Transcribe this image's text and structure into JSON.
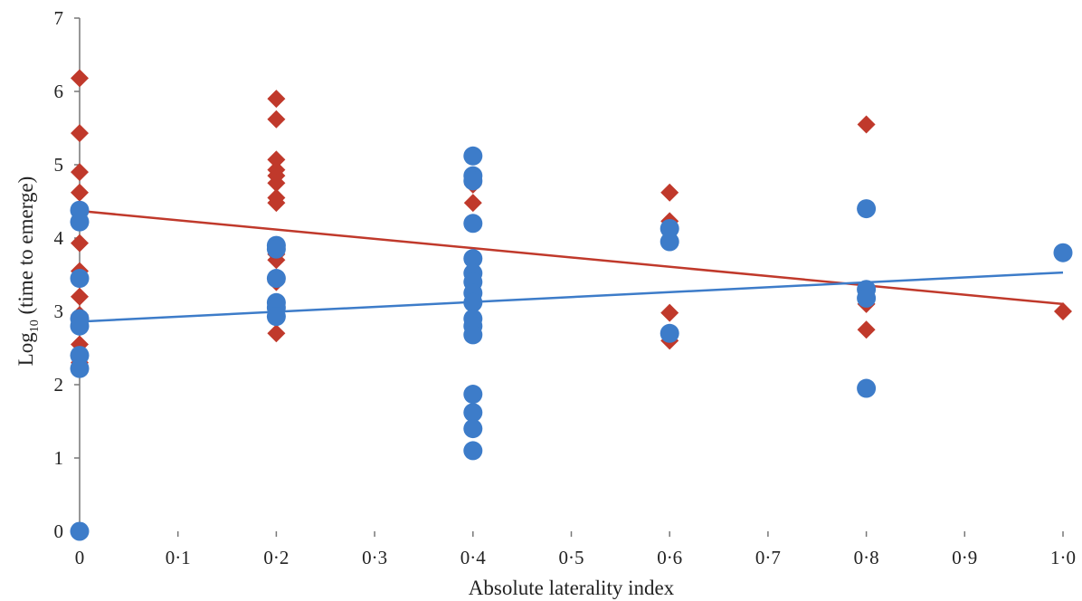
{
  "chart_data": {
    "type": "scatter",
    "title": "",
    "xlabel": "Absolute laterality index",
    "ylabel_main": "Log",
    "ylabel_sub": "10",
    "ylabel_rest": " (time to emerge)",
    "xlim": [
      0,
      1.0
    ],
    "ylim": [
      0,
      7
    ],
    "x_ticks": [
      {
        "value": 0,
        "label": "0"
      },
      {
        "value": 0.1,
        "label": "0·1"
      },
      {
        "value": 0.2,
        "label": "0·2"
      },
      {
        "value": 0.3,
        "label": "0·3"
      },
      {
        "value": 0.4,
        "label": "0·4"
      },
      {
        "value": 0.5,
        "label": "0·5"
      },
      {
        "value": 0.6,
        "label": "0·6"
      },
      {
        "value": 0.7,
        "label": "0·7"
      },
      {
        "value": 0.8,
        "label": "0·8"
      },
      {
        "value": 0.9,
        "label": "0·9"
      },
      {
        "value": 1.0,
        "label": "1·0"
      }
    ],
    "y_ticks": [
      {
        "value": 0,
        "label": "0"
      },
      {
        "value": 1,
        "label": "1"
      },
      {
        "value": 2,
        "label": "2"
      },
      {
        "value": 3,
        "label": "3"
      },
      {
        "value": 4,
        "label": "4"
      },
      {
        "value": 5,
        "label": "5"
      },
      {
        "value": 6,
        "label": "6"
      },
      {
        "value": 7,
        "label": "7"
      }
    ],
    "grid": false,
    "legend": "none",
    "series": [
      {
        "marker": "diamond",
        "color": "#c0392b",
        "points": [
          [
            0,
            6.18
          ],
          [
            0,
            5.43
          ],
          [
            0,
            4.9
          ],
          [
            0,
            4.62
          ],
          [
            0,
            4.25
          ],
          [
            0,
            3.93
          ],
          [
            0,
            3.55
          ],
          [
            0,
            3.2
          ],
          [
            0,
            2.95
          ],
          [
            0,
            2.55
          ],
          [
            0,
            2.3
          ],
          [
            0.2,
            5.9
          ],
          [
            0.2,
            5.62
          ],
          [
            0.2,
            5.07
          ],
          [
            0.2,
            4.93
          ],
          [
            0.2,
            4.85
          ],
          [
            0.2,
            4.75
          ],
          [
            0.2,
            4.55
          ],
          [
            0.2,
            4.48
          ],
          [
            0.2,
            3.78
          ],
          [
            0.2,
            3.7
          ],
          [
            0.2,
            3.4
          ],
          [
            0.2,
            2.7
          ],
          [
            0.4,
            4.73
          ],
          [
            0.4,
            4.48
          ],
          [
            0.4,
            3.4
          ],
          [
            0.6,
            4.62
          ],
          [
            0.6,
            4.23
          ],
          [
            0.6,
            2.98
          ],
          [
            0.6,
            2.6
          ],
          [
            0.8,
            5.55
          ],
          [
            0.8,
            3.1
          ],
          [
            0.8,
            2.75
          ],
          [
            1.0,
            3.0
          ]
        ],
        "trend": {
          "x0": 0,
          "y0": 4.37,
          "x1": 1.0,
          "y1": 3.1
        }
      },
      {
        "marker": "circle",
        "color": "#3d7cc9",
        "points": [
          [
            0,
            4.38
          ],
          [
            0,
            4.22
          ],
          [
            0,
            3.45
          ],
          [
            0,
            2.9
          ],
          [
            0,
            2.8
          ],
          [
            0,
            2.4
          ],
          [
            0,
            2.22
          ],
          [
            0,
            0.0
          ],
          [
            0.2,
            3.9
          ],
          [
            0.2,
            3.85
          ],
          [
            0.2,
            3.45
          ],
          [
            0.2,
            3.12
          ],
          [
            0.2,
            3.05
          ],
          [
            0.2,
            2.93
          ],
          [
            0.4,
            5.12
          ],
          [
            0.4,
            4.85
          ],
          [
            0.4,
            4.78
          ],
          [
            0.4,
            4.2
          ],
          [
            0.4,
            3.72
          ],
          [
            0.4,
            3.52
          ],
          [
            0.4,
            3.4
          ],
          [
            0.4,
            3.25
          ],
          [
            0.4,
            3.12
          ],
          [
            0.4,
            2.9
          ],
          [
            0.4,
            2.8
          ],
          [
            0.4,
            2.68
          ],
          [
            0.4,
            1.87
          ],
          [
            0.4,
            1.62
          ],
          [
            0.4,
            1.4
          ],
          [
            0.4,
            1.1
          ],
          [
            0.6,
            4.13
          ],
          [
            0.6,
            3.95
          ],
          [
            0.6,
            2.7
          ],
          [
            0.8,
            4.4
          ],
          [
            0.8,
            3.3
          ],
          [
            0.8,
            3.18
          ],
          [
            0.8,
            1.95
          ],
          [
            1.0,
            3.8
          ]
        ],
        "trend": {
          "x0": 0,
          "y0": 2.86,
          "x1": 1.0,
          "y1": 3.53
        }
      }
    ]
  }
}
